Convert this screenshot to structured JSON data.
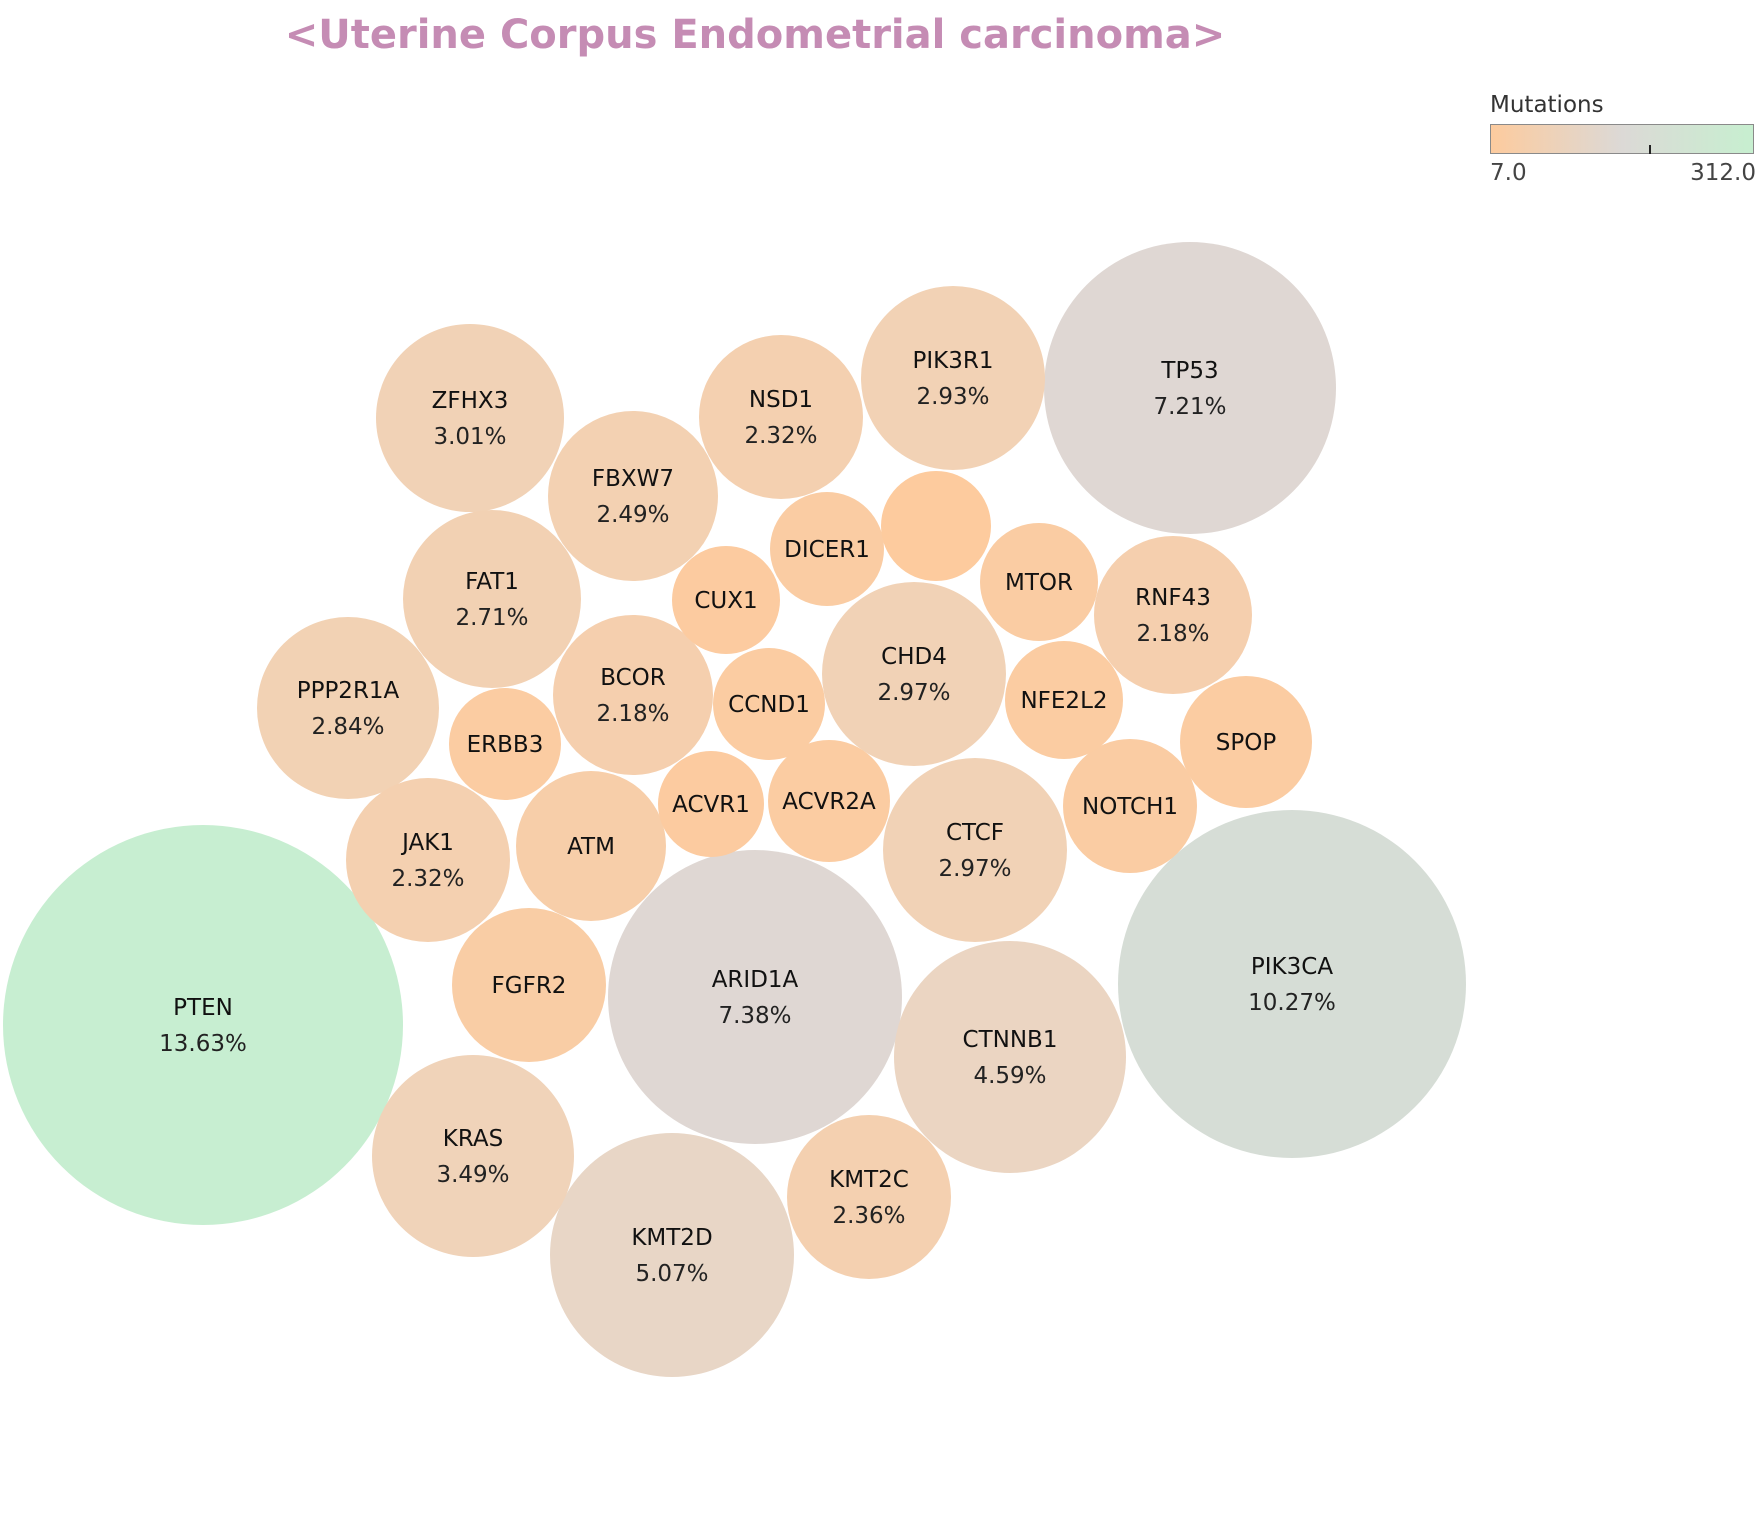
{
  "chart_data": {
    "type": "bubble",
    "title": "<Uterine Corpus Endometrial carcinoma>",
    "colorbar": {
      "label": "Mutations",
      "min": 7.0,
      "max": 312.0,
      "min_label": "7.0",
      "max_label": "312.0",
      "colors": [
        "#fdcb9e",
        "#dcd9d6",
        "#c7efd0"
      ]
    },
    "bubbles": [
      {
        "name": "PTEN",
        "pct": "13.63%",
        "mutations": 312,
        "color": "#c7eed1"
      },
      {
        "name": "PIK3CA",
        "pct": "10.27%",
        "mutations": 235,
        "color": "#d6ddd6"
      },
      {
        "name": "ARID1A",
        "pct": "7.38%",
        "mutations": 169,
        "color": "#dfd7d3"
      },
      {
        "name": "TP53",
        "pct": "7.21%",
        "mutations": 165,
        "color": "#dfd7d3"
      },
      {
        "name": "KMT2D",
        "pct": "5.07%",
        "mutations": 116,
        "color": "#e8d6c6"
      },
      {
        "name": "CTNNB1",
        "pct": "4.59%",
        "mutations": 105,
        "color": "#ebd5c2"
      },
      {
        "name": "KRAS",
        "pct": "3.49%",
        "mutations": 80,
        "color": "#f0d3b9"
      },
      {
        "name": "ZFHX3",
        "pct": "3.01%",
        "mutations": 69,
        "color": "#f1d2b6"
      },
      {
        "name": "CHD4",
        "pct": "2.97%",
        "mutations": 68,
        "color": "#f1d2b6"
      },
      {
        "name": "CTCF",
        "pct": "2.97%",
        "mutations": 68,
        "color": "#f1d2b6"
      },
      {
        "name": "PIK3R1",
        "pct": "2.93%",
        "mutations": 67,
        "color": "#f2d2b5"
      },
      {
        "name": "PPP2R1A",
        "pct": "2.84%",
        "mutations": 65,
        "color": "#f2d2b4"
      },
      {
        "name": "FAT1",
        "pct": "2.71%",
        "mutations": 62,
        "color": "#f2d1b3"
      },
      {
        "name": "FBXW7",
        "pct": "2.49%",
        "mutations": 57,
        "color": "#f3d1b2"
      },
      {
        "name": "KMT2C",
        "pct": "2.36%",
        "mutations": 54,
        "color": "#f4d0b0"
      },
      {
        "name": "NSD1",
        "pct": "2.32%",
        "mutations": 53,
        "color": "#f4d0b0"
      },
      {
        "name": "JAK1",
        "pct": "2.32%",
        "mutations": 53,
        "color": "#f4d0b0"
      },
      {
        "name": "BCOR",
        "pct": "2.18%",
        "mutations": 50,
        "color": "#f5cfae"
      },
      {
        "name": "RNF43",
        "pct": "2.18%",
        "mutations": 50,
        "color": "#f5cfae"
      },
      {
        "name": "ATM",
        "pct": "",
        "color": "#f7cea9"
      },
      {
        "name": "FGFR2",
        "pct": "",
        "color": "#f9cda5"
      },
      {
        "name": "DICER1",
        "pct": "",
        "color": "#facca3"
      },
      {
        "name": "MTOR",
        "pct": "",
        "color": "#facca3"
      },
      {
        "name": "NOTCH1",
        "pct": "",
        "color": "#facca3"
      },
      {
        "name": "SPOP",
        "pct": "",
        "color": "#fbcca2"
      },
      {
        "name": "ERBB3",
        "pct": "",
        "color": "#fbcca2"
      },
      {
        "name": "CCND1",
        "pct": "",
        "color": "#fbcca2"
      },
      {
        "name": "ACVR2A",
        "pct": "",
        "color": "#fbcca2"
      },
      {
        "name": "NFE2L2",
        "pct": "",
        "color": "#fbcca2"
      },
      {
        "name": "CUX1",
        "pct": "",
        "color": "#fccba0"
      },
      {
        "name": "ACVR1",
        "pct": "",
        "color": "#fccba0"
      },
      {
        "name": "",
        "pct": "",
        "color": "#fdcb9e"
      }
    ]
  }
}
